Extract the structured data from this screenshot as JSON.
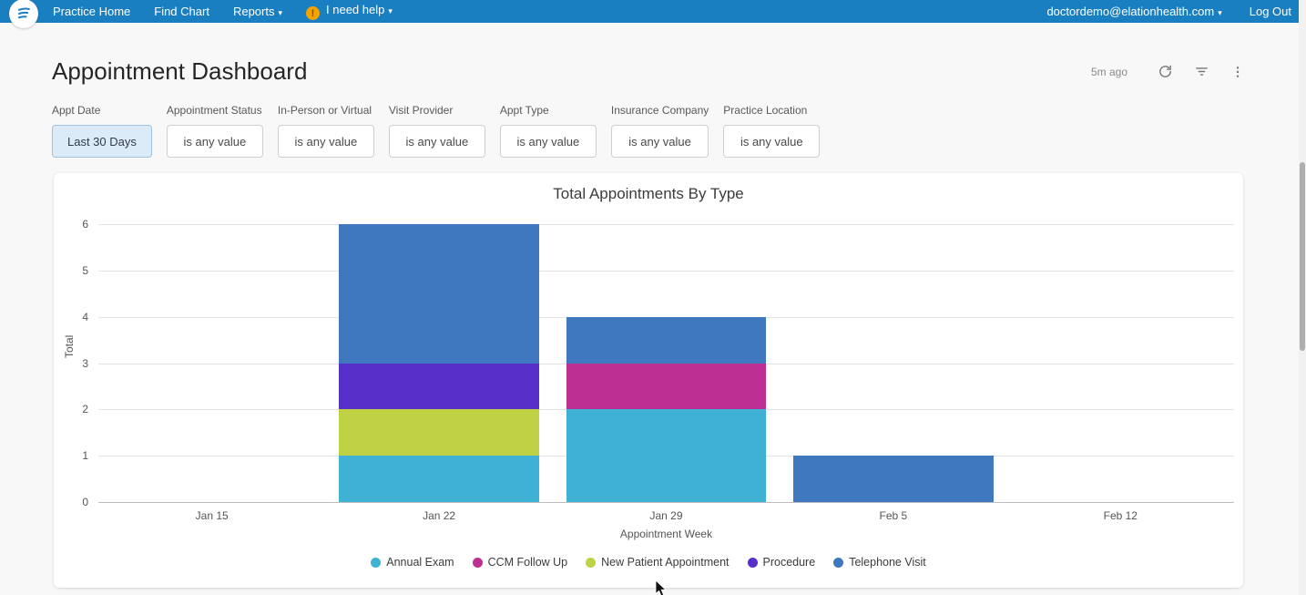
{
  "navbar": {
    "items": [
      {
        "label": "Practice Home"
      },
      {
        "label": "Find Chart"
      },
      {
        "label": "Reports"
      }
    ],
    "help_label": "I need help",
    "warning_glyph": "!",
    "account_label": "doctordemo@elationhealth.com",
    "logout_label": "Log Out",
    "caret": "▾"
  },
  "header": {
    "title": "Appointment Dashboard",
    "updated": "5m ago"
  },
  "filters": [
    {
      "label": "Appt Date",
      "value": "Last 30 Days",
      "active": true
    },
    {
      "label": "Appointment Status",
      "value": "is any value",
      "active": false
    },
    {
      "label": "In-Person or Virtual",
      "value": "is any value",
      "active": false
    },
    {
      "label": "Visit Provider",
      "value": "is any value",
      "active": false
    },
    {
      "label": "Appt Type",
      "value": "is any value",
      "active": false
    },
    {
      "label": "Insurance Company",
      "value": "is any value",
      "active": false
    },
    {
      "label": "Practice Location",
      "value": "is any value",
      "active": false
    }
  ],
  "chart_data": {
    "type": "bar",
    "stacked": true,
    "title": "Total Appointments By Type",
    "xlabel": "Appointment Week",
    "ylabel": "Total",
    "ylim": [
      0,
      6
    ],
    "yticks": [
      0,
      1,
      2,
      3,
      4,
      5,
      6
    ],
    "grid": true,
    "legend_position": "bottom",
    "categories": [
      "Jan 15",
      "Jan 22",
      "Jan 29",
      "Feb 5",
      "Feb 12"
    ],
    "series": [
      {
        "name": "Annual Exam",
        "color": "#3EB1D5",
        "values": [
          0,
          1,
          2,
          0,
          0
        ]
      },
      {
        "name": "CCM Follow Up",
        "color": "#BE2F93",
        "values": [
          0,
          0,
          1,
          0,
          0
        ]
      },
      {
        "name": "New Patient Appointment",
        "color": "#BFD244",
        "values": [
          0,
          1,
          0,
          0,
          0
        ]
      },
      {
        "name": "Procedure",
        "color": "#5630C8",
        "values": [
          0,
          1,
          0,
          0,
          0
        ]
      },
      {
        "name": "Telephone Visit",
        "color": "#3F78BE",
        "values": [
          0,
          3,
          1,
          1,
          0
        ]
      }
    ]
  }
}
